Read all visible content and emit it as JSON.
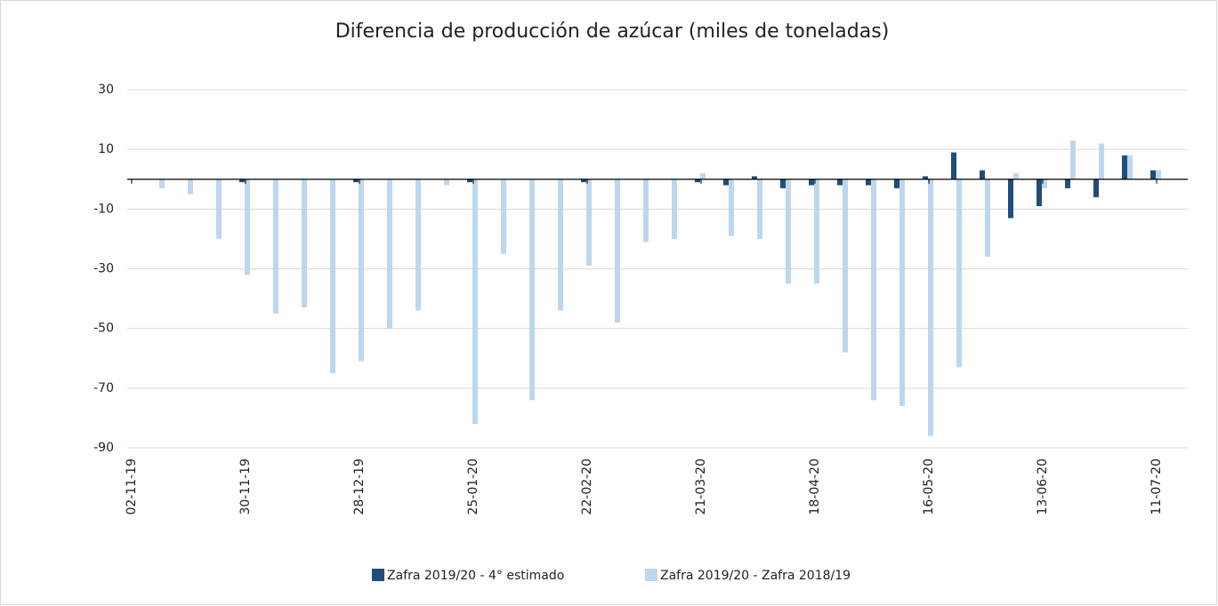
{
  "chart_data": {
    "type": "bar",
    "title": "Diferencia de producción de azúcar (miles de toneladas)",
    "categories": [
      "02-11-19",
      null,
      null,
      null,
      "30-11-19",
      null,
      null,
      null,
      "28-12-19",
      null,
      null,
      null,
      "25-01-20",
      null,
      null,
      null,
      "22-02-20",
      null,
      null,
      null,
      "21-03-20",
      null,
      null,
      null,
      "18-04-20",
      null,
      null,
      null,
      "16-05-20",
      null,
      null,
      null,
      "13-06-20",
      null,
      null,
      null,
      "11-07-20"
    ],
    "series": [
      {
        "name": "Zafra 2019/20 - 4° estimado",
        "color": "#1f4e79",
        "values": [
          0,
          0,
          0,
          0,
          -1,
          0,
          0,
          0,
          -1,
          0,
          0,
          0,
          -1,
          0,
          0,
          0,
          -1,
          0,
          0,
          0,
          -1,
          -2,
          1,
          -3,
          -2,
          -2,
          -2,
          -3,
          1,
          9,
          3,
          -13,
          -9,
          -3,
          -6,
          8,
          3
        ]
      },
      {
        "name": "Zafra 2019/20 - Zafra 2018/19",
        "color": "#bdd7ee",
        "values": [
          0,
          -3,
          -5,
          -20,
          -32,
          -45,
          -43,
          -65,
          -61,
          -50,
          -44,
          -2,
          -82,
          -25,
          -74,
          -44,
          -29,
          -48,
          -21,
          -20,
          2,
          -19,
          -20,
          -35,
          -35,
          -58,
          -74,
          -76,
          -86,
          -63,
          -26,
          2,
          -3,
          13,
          12,
          8,
          3
        ]
      }
    ],
    "ylim": [
      -90,
      30
    ],
    "yticks": [
      30,
      10,
      -10,
      -30,
      -50,
      -70,
      -90
    ],
    "grid": true,
    "legend": "bottom"
  }
}
